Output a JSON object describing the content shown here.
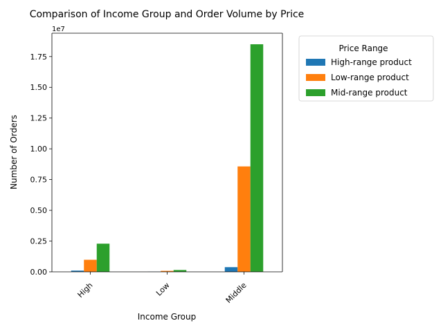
{
  "chart_data": {
    "type": "bar",
    "title": "Comparison of Income Group and Order Volume by Price",
    "xlabel": "Income Group",
    "ylabel": "Number of Orders",
    "categories": [
      "High",
      "Low",
      "Middle"
    ],
    "series": [
      {
        "name": "High-range product",
        "color": "#1f77b4",
        "values": [
          100000,
          10000,
          380000
        ]
      },
      {
        "name": "Low-range product",
        "color": "#ff7f0e",
        "values": [
          980000,
          80000,
          8570000
        ]
      },
      {
        "name": "Mid-range product",
        "color": "#2ca02c",
        "values": [
          2290000,
          150000,
          18500000
        ]
      }
    ],
    "ylim": [
      0,
      19400000
    ],
    "yticks": [
      0,
      2500000,
      5000000,
      7500000,
      10000000,
      12500000,
      15000000,
      17500000
    ],
    "ytick_labels": [
      "0.00",
      "0.25",
      "0.50",
      "0.75",
      "1.00",
      "1.25",
      "1.50",
      "1.75"
    ],
    "y_offset_label": "1e7",
    "legend": {
      "title": "Price Range",
      "position": "outside-right"
    },
    "grid": false
  }
}
